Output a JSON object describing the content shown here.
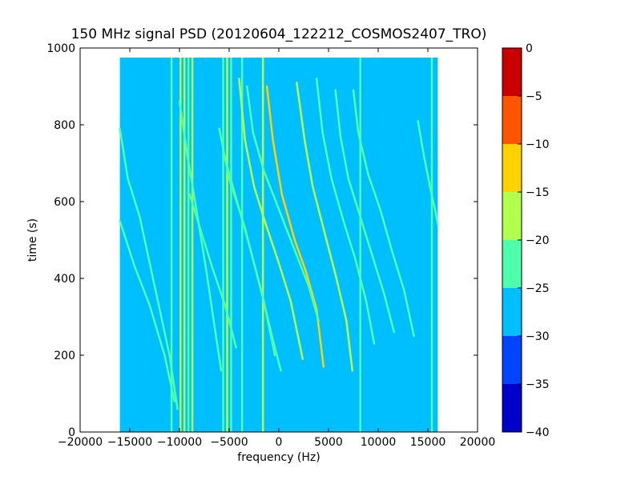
{
  "chart_data": {
    "type": "heatmap",
    "title": "150 MHz signal PSD (20120604_122212_COSMOS2407_TRO)",
    "xlabel": "frequency (Hz)",
    "ylabel": "time (s)",
    "xlim": [
      -20000,
      20000
    ],
    "ylim": [
      0,
      1000
    ],
    "xticks": [
      -20000,
      -15000,
      -10000,
      -5000,
      0,
      5000,
      10000,
      15000,
      20000
    ],
    "xtick_labels": [
      "−20000",
      "−15000",
      "−10000",
      "−5000",
      "0",
      "5000",
      "10000",
      "15000",
      "20000"
    ],
    "yticks": [
      0,
      200,
      400,
      600,
      800,
      1000
    ],
    "ytick_labels": [
      "0",
      "200",
      "400",
      "600",
      "800",
      "1000"
    ],
    "data_extent": {
      "freq": [
        -16000,
        16000
      ],
      "time": [
        0,
        975
      ]
    },
    "background_level": -27.5,
    "colorbar": {
      "min": -40,
      "max": 0,
      "ticks": [
        0,
        -5,
        -10,
        -15,
        -20,
        -25,
        -30,
        -35,
        -40
      ],
      "tick_labels": [
        "0",
        "−5",
        "−10",
        "−15",
        "−20",
        "−25",
        "−30",
        "−35",
        "−40"
      ],
      "bands": [
        {
          "from": -40,
          "to": -35,
          "color": "#0000c8"
        },
        {
          "from": -35,
          "to": -30,
          "color": "#0044ff"
        },
        {
          "from": -30,
          "to": -25,
          "color": "#00bfff"
        },
        {
          "from": -25,
          "to": -20,
          "color": "#4dffaa"
        },
        {
          "from": -20,
          "to": -15,
          "color": "#b3ff4d"
        },
        {
          "from": -15,
          "to": -10,
          "color": "#ffd200"
        },
        {
          "from": -10,
          "to": -5,
          "color": "#ff5500"
        },
        {
          "from": -5,
          "to": 0,
          "color": "#c80000"
        }
      ]
    },
    "vertical_lines": [
      {
        "freq": -10800,
        "t0": 0,
        "t1": 975,
        "level": -22
      },
      {
        "freq": -9900,
        "t0": 0,
        "t1": 975,
        "level": -17
      },
      {
        "freq": -9500,
        "t0": 0,
        "t1": 975,
        "level": -17
      },
      {
        "freq": -9100,
        "t0": 0,
        "t1": 975,
        "level": -22
      },
      {
        "freq": -8700,
        "t0": 0,
        "t1": 975,
        "level": -17
      },
      {
        "freq": -5600,
        "t0": 0,
        "t1": 975,
        "level": -22
      },
      {
        "freq": -5200,
        "t0": 0,
        "t1": 975,
        "level": -17
      },
      {
        "freq": -4800,
        "t0": 0,
        "t1": 975,
        "level": -22
      },
      {
        "freq": -3700,
        "t0": 0,
        "t1": 975,
        "level": -22
      },
      {
        "freq": -1600,
        "t0": 0,
        "t1": 975,
        "level": -17
      },
      {
        "freq": 8200,
        "t0": 0,
        "t1": 975,
        "level": -22
      },
      {
        "freq": 15400,
        "t0": 0,
        "t1": 975,
        "level": -22
      }
    ],
    "tracks": [
      {
        "name": "",
        "level": -22,
        "points": [
          [
            -16000,
            790
          ],
          [
            -15200,
            660
          ],
          [
            -14000,
            560
          ],
          [
            -13000,
            440
          ],
          [
            -12000,
            320
          ],
          [
            -11000,
            200
          ],
          [
            -10200,
            60
          ]
        ]
      },
      {
        "name": "",
        "level": -22,
        "points": [
          [
            -16000,
            550
          ],
          [
            -14500,
            430
          ],
          [
            -13000,
            330
          ],
          [
            -11500,
            200
          ],
          [
            -10500,
            80
          ]
        ]
      },
      {
        "name": "",
        "level": -22,
        "points": [
          [
            -10000,
            860
          ],
          [
            -9200,
            720
          ],
          [
            -8300,
            580
          ],
          [
            -7300,
            420
          ],
          [
            -6500,
            280
          ],
          [
            -5800,
            160
          ]
        ]
      },
      {
        "name": "",
        "level": -22,
        "points": [
          [
            -6000,
            790
          ],
          [
            -5000,
            660
          ],
          [
            -3500,
            540
          ],
          [
            -2500,
            440
          ],
          [
            -1500,
            340
          ],
          [
            -400,
            200
          ]
        ]
      },
      {
        "name": "",
        "level": -22,
        "points": [
          [
            -5500,
            720
          ],
          [
            -4200,
            600
          ],
          [
            -2900,
            480
          ],
          [
            -1800,
            370
          ],
          [
            -600,
            240
          ],
          [
            200,
            160
          ]
        ]
      },
      {
        "name": "",
        "level": -17,
        "points": [
          [
            -4000,
            920
          ],
          [
            -3400,
            760
          ],
          [
            -2500,
            640
          ],
          [
            -1300,
            540
          ],
          [
            0,
            440
          ],
          [
            1200,
            340
          ],
          [
            2400,
            190
          ]
        ]
      },
      {
        "name": "",
        "level": -12,
        "points": [
          [
            -1200,
            900
          ],
          [
            -600,
            760
          ],
          [
            300,
            620
          ],
          [
            1600,
            500
          ],
          [
            2700,
            420
          ],
          [
            3800,
            320
          ],
          [
            4500,
            170
          ]
        ]
      },
      {
        "name": "",
        "level": -17,
        "points": [
          [
            1800,
            910
          ],
          [
            2600,
            760
          ],
          [
            3400,
            640
          ],
          [
            4600,
            520
          ],
          [
            5800,
            400
          ],
          [
            6800,
            290
          ],
          [
            7400,
            160
          ]
        ]
      },
      {
        "name": "",
        "level": -22,
        "points": [
          [
            3800,
            920
          ],
          [
            4400,
            780
          ],
          [
            5300,
            660
          ],
          [
            6500,
            550
          ],
          [
            7700,
            450
          ],
          [
            8800,
            340
          ],
          [
            9600,
            230
          ]
        ]
      },
      {
        "name": "",
        "level": -22,
        "points": [
          [
            5700,
            890
          ],
          [
            6200,
            770
          ],
          [
            7000,
            660
          ],
          [
            8200,
            560
          ],
          [
            9400,
            460
          ],
          [
            10600,
            360
          ],
          [
            11600,
            260
          ]
        ]
      },
      {
        "name": "",
        "level": -22,
        "points": [
          [
            7500,
            890
          ],
          [
            8000,
            780
          ],
          [
            9000,
            670
          ],
          [
            10200,
            580
          ],
          [
            11400,
            470
          ],
          [
            12600,
            370
          ],
          [
            13600,
            250
          ]
        ]
      },
      {
        "name": "",
        "level": -22,
        "points": [
          [
            -3200,
            900
          ],
          [
            -2600,
            780
          ],
          [
            -1500,
            680
          ],
          [
            0,
            580
          ],
          [
            1500,
            480
          ],
          [
            3000,
            380
          ],
          [
            4000,
            290
          ]
        ]
      },
      {
        "name": "",
        "level": -22,
        "points": [
          [
            -9000,
            620
          ],
          [
            -7800,
            520
          ],
          [
            -6600,
            420
          ],
          [
            -5400,
            330
          ],
          [
            -4300,
            220
          ]
        ]
      },
      {
        "name": "",
        "level": -22,
        "points": [
          [
            14000,
            810
          ],
          [
            14600,
            720
          ],
          [
            15200,
            640
          ],
          [
            15800,
            570
          ],
          [
            16000,
            540
          ]
        ]
      }
    ]
  }
}
